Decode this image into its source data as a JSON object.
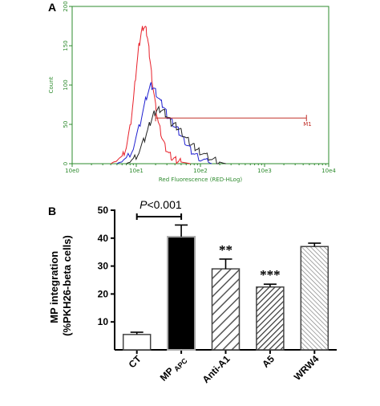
{
  "panels": {
    "a_label": "A",
    "b_label": "B"
  },
  "colors": {
    "axis_green": "#2e8b2e",
    "red": "#e8202a",
    "blue": "#2020d0",
    "black": "#222222",
    "gate": "#c0302a"
  },
  "chart_data": [
    {
      "type": "line",
      "xlabel": "Red Fluorescence (RED-HLog)",
      "ylabel": "Count",
      "x_scale": "log",
      "xlim": [
        1,
        10000
      ],
      "ylim": [
        0,
        200
      ],
      "x_ticks": [
        "10e0",
        "10e1",
        "10e2",
        "10e3",
        "10e4"
      ],
      "y_ticks": [
        "0",
        "50",
        "100",
        "150",
        "200"
      ],
      "grid": false,
      "gate": {
        "label": "M1",
        "x_range": [
          20,
          4500
        ],
        "y": 58
      },
      "series": [
        {
          "color": "red",
          "x": [
            4,
            6,
            7,
            8,
            9,
            10,
            11,
            12,
            13,
            14,
            15,
            16,
            17,
            18,
            20,
            22,
            25,
            28,
            32,
            36,
            40,
            45,
            50,
            60,
            70
          ],
          "y": [
            0,
            8,
            22,
            45,
            80,
            120,
            150,
            168,
            175,
            172,
            160,
            140,
            120,
            100,
            72,
            52,
            35,
            22,
            14,
            8,
            5,
            3,
            2,
            1,
            0
          ]
        },
        {
          "color": "blue",
          "x": [
            5,
            7,
            9,
            11,
            13,
            15,
            17,
            19,
            21,
            24,
            27,
            30,
            35,
            40,
            45,
            50,
            60,
            70,
            80,
            100,
            120,
            150
          ],
          "y": [
            0,
            6,
            20,
            45,
            70,
            90,
            100,
            96,
            88,
            78,
            72,
            62,
            55,
            48,
            42,
            34,
            26,
            18,
            12,
            7,
            3,
            0
          ]
        },
        {
          "color": "black",
          "x": [
            7,
            9,
            11,
            13,
            15,
            17,
            19,
            21,
            24,
            27,
            30,
            35,
            40,
            45,
            50,
            60,
            70,
            80,
            90,
            100,
            120,
            150,
            180,
            220,
            250
          ],
          "y": [
            0,
            5,
            15,
            28,
            42,
            55,
            64,
            68,
            70,
            66,
            60,
            52,
            50,
            45,
            40,
            32,
            26,
            22,
            18,
            15,
            10,
            6,
            3,
            1,
            0
          ]
        }
      ]
    },
    {
      "type": "bar",
      "ylabel": "MP integration\n(%PKH26-beta cells)",
      "ylim": [
        0,
        50
      ],
      "y_ticks": [
        "10",
        "20",
        "30",
        "40",
        "50"
      ],
      "categories": [
        "CT",
        "MP",
        "Anti-A1",
        "A5",
        "WRW4"
      ],
      "category_subscripts": [
        "",
        "APC",
        "",
        "",
        ""
      ],
      "values": [
        5.5,
        40.5,
        29,
        22.5,
        37
      ],
      "errors": [
        0.8,
        4.2,
        3.5,
        1.0,
        1.2
      ],
      "styles": [
        "white",
        "black",
        "hatch-wide",
        "hatch-dense",
        "hatch-fine"
      ],
      "significance": [
        "",
        "",
        "**",
        "***",
        ""
      ],
      "comparison": {
        "from": "CT",
        "to": "MP",
        "p_letter": "P",
        "p_rest": "<0.001"
      }
    }
  ]
}
